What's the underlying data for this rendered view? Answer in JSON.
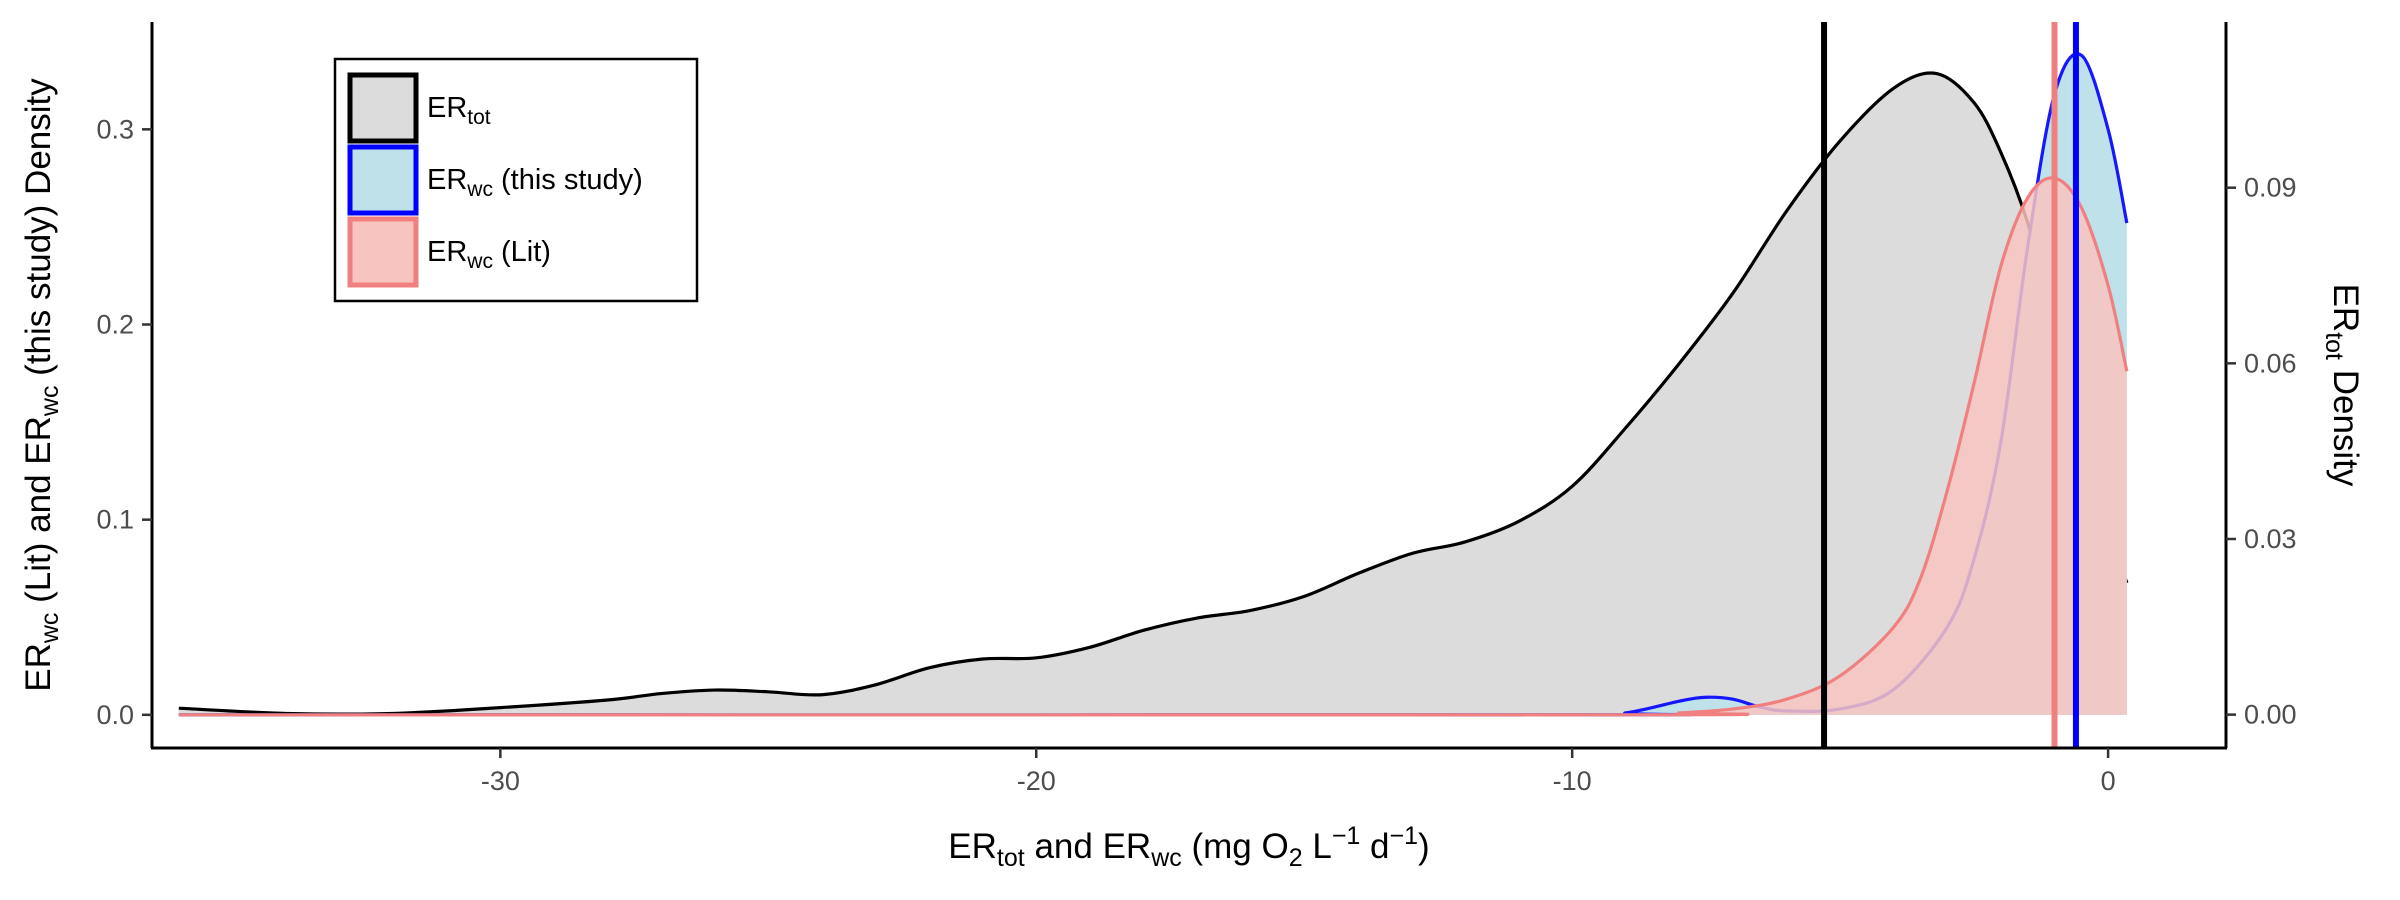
{
  "chart_data": {
    "type": "area",
    "xlabel": {
      "main": "ER",
      "sub1": "tot",
      "mid": " and ER",
      "sub2": "wc",
      "units": " (mg O",
      "o2sub": "2",
      "unitsL": " L",
      "exp1": "−1",
      "unitsD": " d",
      "exp2": "−1",
      "close": ")"
    },
    "ylabel_left": {
      "pre": "ER",
      "sub1": "wc",
      "mid": " (Lit) and ER",
      "sub2": "wc",
      "post": " (this study) Density"
    },
    "ylabel_right": {
      "pre": "ER",
      "sub": "tot",
      "post": " Density"
    },
    "xlim": [
      -36.5,
      2.2
    ],
    "ylim_left": [
      -0.017,
      0.355
    ],
    "ylim_right": [
      -0.0057,
      0.1183
    ],
    "x_ticks": [
      -30,
      -20,
      -10,
      0
    ],
    "x_tick_labels": [
      "-30",
      "-20",
      "-10",
      "0"
    ],
    "y_left_ticks": [
      0.0,
      0.1,
      0.2,
      0.3
    ],
    "y_left_tick_labels": [
      "0.0",
      "0.1",
      "0.2",
      "0.3"
    ],
    "y_right_ticks": [
      0.0,
      0.03,
      0.06,
      0.09
    ],
    "y_right_tick_labels": [
      "0.00",
      "0.03",
      "0.06",
      "0.09"
    ],
    "grid": false,
    "legend_position": "top-left",
    "legend": [
      {
        "main": "ER",
        "sub": "tot",
        "rest": "",
        "fill": "#dcdcdc",
        "stroke": "#000000"
      },
      {
        "main": "ER",
        "sub": "wc",
        "rest": " (this study)",
        "fill": "#bfe2ea",
        "stroke": "#0000ff"
      },
      {
        "main": "ER",
        "sub": "wc",
        "rest": " (Lit)",
        "fill": "#f8c4c0",
        "stroke": "#f08080"
      }
    ],
    "series": [
      {
        "axis": "right",
        "fill": "#dcdcdc",
        "stroke": "#000000",
        "x": [
          -36,
          -34,
          -32,
          -30,
          -28,
          -27,
          -26,
          -25,
          -24,
          -23,
          -22,
          -21,
          -20,
          -19,
          -18,
          -17,
          -16,
          -15,
          -14,
          -13,
          -12,
          -11,
          -10,
          -9,
          -8,
          -7,
          -6,
          -5,
          -4,
          -3.2,
          -2.5,
          -2,
          -1.5,
          -1,
          -0.5,
          0,
          0.35
        ],
        "y": [
          0.0011,
          0.0002,
          0.0002,
          0.0012,
          0.0025,
          0.0036,
          0.0042,
          0.0039,
          0.0034,
          0.0051,
          0.008,
          0.0095,
          0.0097,
          0.0115,
          0.0144,
          0.0165,
          0.0178,
          0.0202,
          0.0241,
          0.0275,
          0.0295,
          0.033,
          0.039,
          0.049,
          0.06,
          0.072,
          0.086,
          0.098,
          0.107,
          0.1095,
          0.1045,
          0.096,
          0.084,
          0.067,
          0.048,
          0.032,
          0.0225
        ]
      },
      {
        "axis": "left",
        "fill": "#bfe2ea",
        "stroke": "#0000ff",
        "x": [
          -36,
          -10,
          -9,
          -8,
          -7.5,
          -7,
          -6.5,
          -6,
          -5,
          -4,
          -3,
          -2.5,
          -2,
          -1.5,
          -1,
          -0.5,
          0,
          0.35
        ],
        "y": [
          0,
          0,
          0.001,
          0.007,
          0.009,
          0.008,
          0.004,
          0.002,
          0.003,
          0.013,
          0.045,
          0.08,
          0.14,
          0.24,
          0.318,
          0.338,
          0.3,
          0.252
        ]
      },
      {
        "axis": "left",
        "fill": "#f8c4c0",
        "stroke": "#f08080",
        "x": [
          -36,
          -9,
          -8,
          -7,
          -6,
          -5,
          -4,
          -3.5,
          -3,
          -2.5,
          -2,
          -1.5,
          -1,
          -0.5,
          0,
          0.35
        ],
        "y": [
          0,
          0,
          0.001,
          0.003,
          0.008,
          0.02,
          0.045,
          0.07,
          0.115,
          0.17,
          0.23,
          0.265,
          0.275,
          0.26,
          0.22,
          0.176
        ]
      }
    ],
    "vlines": [
      {
        "x": -5.3,
        "color": "#000000"
      },
      {
        "x": -1.0,
        "color": "#f08080"
      },
      {
        "x": -0.6,
        "color": "#0000ff"
      }
    ]
  }
}
